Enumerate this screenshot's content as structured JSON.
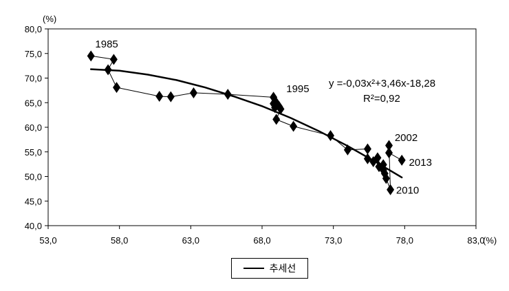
{
  "chart_data": {
    "type": "scatter",
    "xlim": [
      53.0,
      83.0
    ],
    "ylim": [
      40.0,
      80.0
    ],
    "xticks": [
      "53,0",
      "58,0",
      "63,0",
      "68,0",
      "73,0",
      "78,0",
      "83,0"
    ],
    "yticks": [
      "40,0",
      "45,0",
      "50,0",
      "55,0",
      "60,0",
      "65,0",
      "70,0",
      "75,0",
      "80,0"
    ],
    "x_unit": "(%)",
    "y_unit": "(%)",
    "grid": false,
    "legend_position": "bottom-center",
    "series": [
      {
        "name": "",
        "marker": "diamond",
        "values": [
          {
            "x": 56.0,
            "y": 74.5
          },
          {
            "x": 57.6,
            "y": 73.8
          },
          {
            "x": 57.2,
            "y": 71.7
          },
          {
            "x": 57.8,
            "y": 68.1
          },
          {
            "x": 60.8,
            "y": 66.3
          },
          {
            "x": 61.6,
            "y": 66.2
          },
          {
            "x": 63.2,
            "y": 67.0
          },
          {
            "x": 65.6,
            "y": 66.7
          },
          {
            "x": 68.8,
            "y": 66.1
          },
          {
            "x": 68.8,
            "y": 64.8
          },
          {
            "x": 69.0,
            "y": 65.0
          },
          {
            "x": 69.2,
            "y": 64.2
          },
          {
            "x": 68.9,
            "y": 64.0
          },
          {
            "x": 69.3,
            "y": 63.7
          },
          {
            "x": 69.0,
            "y": 61.6
          },
          {
            "x": 70.2,
            "y": 60.2
          },
          {
            "x": 72.8,
            "y": 58.3
          },
          {
            "x": 74.0,
            "y": 55.4
          },
          {
            "x": 75.4,
            "y": 55.6
          },
          {
            "x": 75.4,
            "y": 53.6
          },
          {
            "x": 75.8,
            "y": 53.0
          },
          {
            "x": 76.1,
            "y": 53.8
          },
          {
            "x": 76.2,
            "y": 52.0
          },
          {
            "x": 76.5,
            "y": 52.4
          },
          {
            "x": 76.5,
            "y": 51.3
          },
          {
            "x": 76.6,
            "y": 50.6
          },
          {
            "x": 76.7,
            "y": 49.6
          },
          {
            "x": 77.0,
            "y": 47.3
          },
          {
            "x": 76.9,
            "y": 56.3
          },
          {
            "x": 76.9,
            "y": 54.8
          },
          {
            "x": 77.8,
            "y": 53.3
          }
        ]
      }
    ],
    "trendline": {
      "name": "추세선",
      "formula": "y =-0,03x²+3,46x-18,28",
      "r2": "R²=0,92",
      "x_range": [
        56.0,
        77.8
      ],
      "points": [
        {
          "x": 56.0,
          "y": 71.8
        },
        {
          "x": 58.0,
          "y": 71.5
        },
        {
          "x": 60.0,
          "y": 70.7
        },
        {
          "x": 62.0,
          "y": 69.6
        },
        {
          "x": 64.0,
          "y": 68.1
        },
        {
          "x": 66.0,
          "y": 66.3
        },
        {
          "x": 68.0,
          "y": 64.3
        },
        {
          "x": 70.0,
          "y": 61.9
        },
        {
          "x": 72.0,
          "y": 59.2
        },
        {
          "x": 74.0,
          "y": 56.2
        },
        {
          "x": 76.0,
          "y": 52.9
        },
        {
          "x": 77.8,
          "y": 49.8
        }
      ]
    },
    "annotations": [
      {
        "text": "1985",
        "x": 56.3,
        "y": 76.2
      },
      {
        "text": "1995",
        "x": 69.7,
        "y": 67.1
      },
      {
        "text": "2002",
        "x": 77.3,
        "y": 57.2
      },
      {
        "text": "2013",
        "x": 78.3,
        "y": 52.2
      },
      {
        "text": "2010",
        "x": 77.4,
        "y": 46.5
      }
    ],
    "formula_text": "y =-0,03x²+3,46x-18,28",
    "r2_text": "R²=0,92"
  }
}
